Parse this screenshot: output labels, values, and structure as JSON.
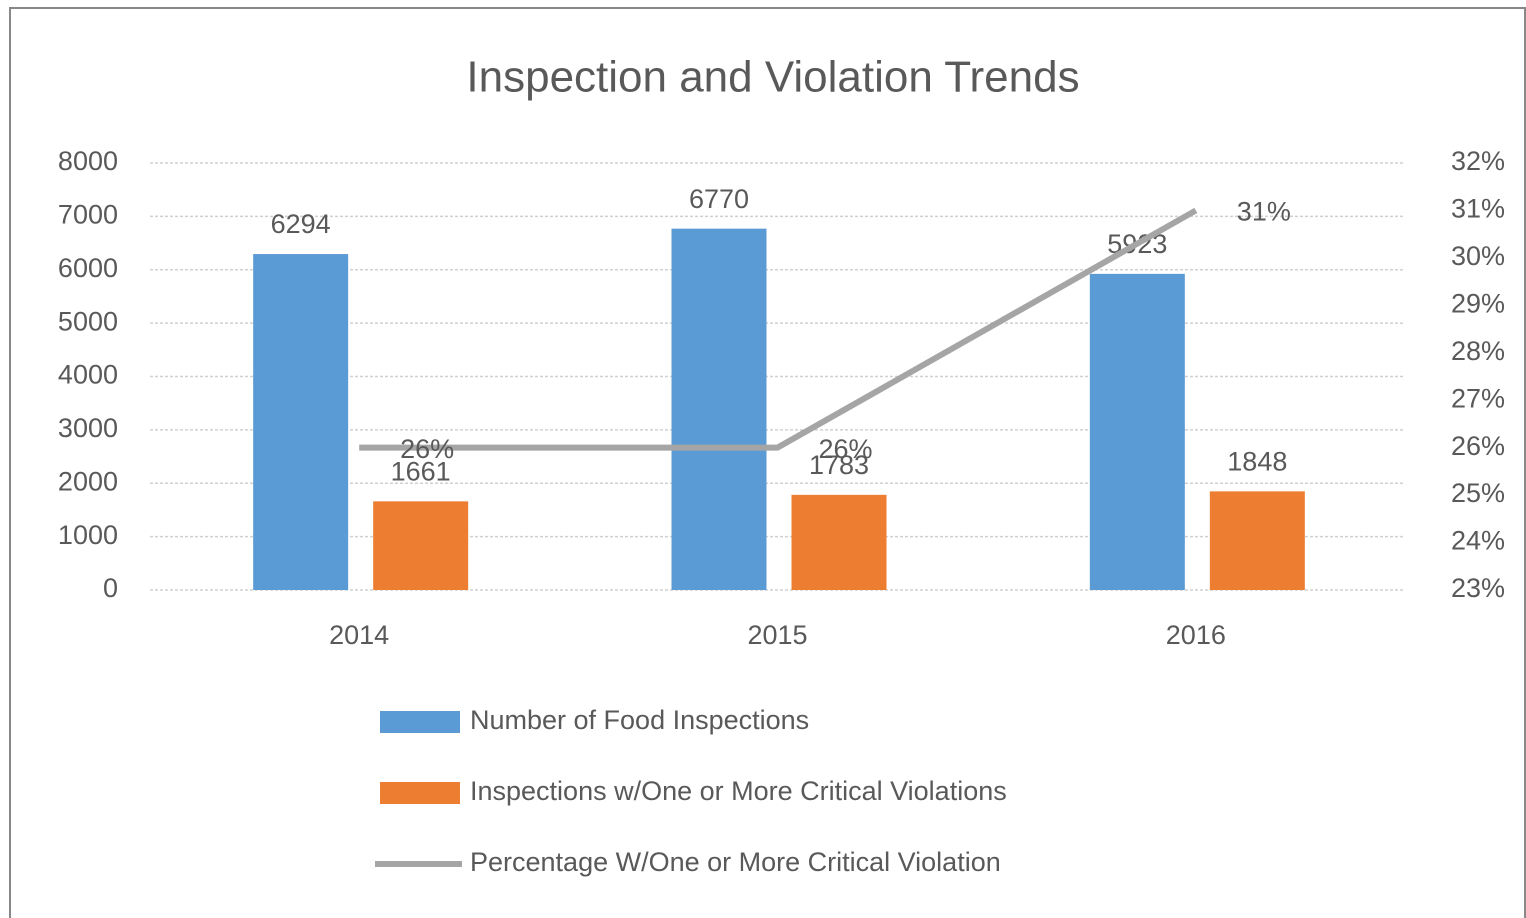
{
  "chart_data": {
    "type": "bar_line",
    "title": "Inspection and Violation Trends",
    "categories": [
      "2014",
      "2015",
      "2016"
    ],
    "series": [
      {
        "name": "Number of Food Inspections",
        "color": "#5b9bd5",
        "type": "bar",
        "values": [
          6294,
          6770,
          5923
        ]
      },
      {
        "name": " Inspections w/One or More Critical Violations",
        "color": "#ed7d31",
        "type": "bar",
        "values": [
          1661,
          1783,
          1848
        ]
      },
      {
        "name": "Percentage W/One or More Critical Violation",
        "color": "#a5a5a5",
        "type": "line",
        "axis": "y2",
        "values": [
          26,
          26,
          31
        ],
        "value_labels": [
          "26%",
          "26%",
          "31%"
        ]
      }
    ],
    "ylim": [
      0,
      8000
    ],
    "yticks": [
      0,
      1000,
      2000,
      3000,
      4000,
      5000,
      6000,
      7000,
      8000
    ],
    "y2lim": [
      23,
      32
    ],
    "y2ticks": [
      {
        "value": 23,
        "label": "23%"
      },
      {
        "value": 24,
        "label": "24%"
      },
      {
        "value": 25,
        "label": "25%"
      },
      {
        "value": 26,
        "label": "26%"
      },
      {
        "value": 27,
        "label": "27%"
      },
      {
        "value": 28,
        "label": "28%"
      },
      {
        "value": 29,
        "label": "29%"
      },
      {
        "value": 30,
        "label": "30%"
      },
      {
        "value": 31,
        "label": "31%"
      },
      {
        "value": 32,
        "label": "32%"
      }
    ],
    "grid": true,
    "legend": "bottom"
  }
}
